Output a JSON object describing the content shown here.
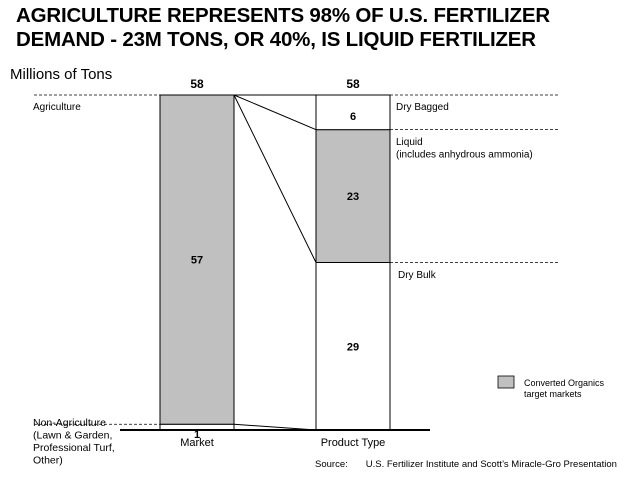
{
  "title": {
    "line1": "AGRICULTURE REPRESENTS 98% OF U.S. FERTILIZER",
    "line2": "DEMAND - 23M TONS, OR 40%, IS LIQUID FERTILIZER"
  },
  "unit_label": "Millions of Tons",
  "source": {
    "label": "Source:",
    "text": "U.S. Fertilizer Institute and Scott’s Miracle-Gro Presentation"
  },
  "colors": {
    "highlight": "#c0c0c0",
    "plain": "#ffffff",
    "line": "#000000"
  },
  "chart_data": {
    "type": "bar",
    "stacked": true,
    "ylim": [
      0,
      58
    ],
    "categories": [
      "Market",
      "Product Type"
    ],
    "totals": [
      58,
      58
    ],
    "bars": [
      {
        "category": "Market",
        "total_label": "58",
        "segments": [
          {
            "name": "Non-Agriculture",
            "value": 1,
            "label": "1",
            "highlighted": false
          },
          {
            "name": "Agriculture",
            "value": 57,
            "label": "57",
            "highlighted": true
          }
        ]
      },
      {
        "category": "Product Type",
        "total_label": "58",
        "segments": [
          {
            "name": "Dry Bulk",
            "value": 29,
            "label": "29",
            "highlighted": false
          },
          {
            "name": "Liquid",
            "value": 23,
            "label": "23",
            "highlighted": true
          },
          {
            "name": "Dry Bagged",
            "value": 6,
            "label": "6",
            "highlighted": false
          }
        ]
      }
    ],
    "left_annotations": [
      {
        "id": "agriculture",
        "lines": [
          "Agriculture"
        ]
      },
      {
        "id": "non-agriculture",
        "lines": [
          "Non-Agriculture",
          "(Lawn & Garden,",
          "Professional Turf,",
          "Other)"
        ]
      }
    ],
    "right_annotations": [
      {
        "id": "dry-bagged",
        "lines": [
          "Dry Bagged"
        ]
      },
      {
        "id": "liquid",
        "lines": [
          "Liquid",
          "(includes anhydrous ammonia)"
        ]
      },
      {
        "id": "dry-bulk",
        "lines": [
          "Dry Bulk"
        ]
      }
    ],
    "legend": {
      "label_lines": [
        "Converted Organics",
        "target markets"
      ],
      "position": "bottom-right"
    }
  }
}
